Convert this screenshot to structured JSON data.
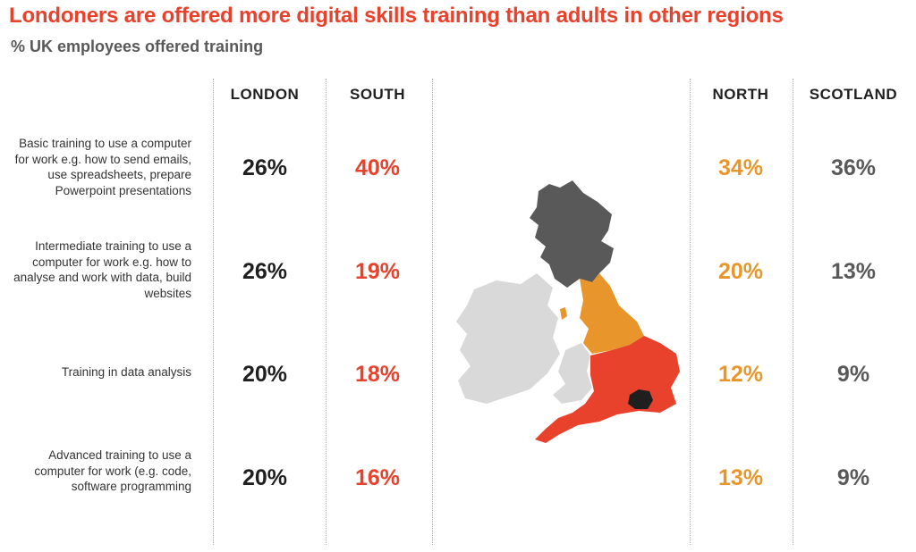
{
  "title": "Londoners are offered more digital skills training than adults in other regions",
  "subtitle": "% UK employees offered training",
  "colors": {
    "title": "#e8412c",
    "london": "#1f1f1f",
    "south": "#e8412c",
    "north": "#e8962c",
    "scotland": "#595959",
    "ireland": "#d9d9d9"
  },
  "map_icon": "uk-regions-map",
  "chart_data": {
    "type": "table",
    "title": "Londoners are offered more digital skills training than adults in other regions",
    "subtitle": "% UK employees offered training",
    "columns": [
      "LONDON",
      "SOUTH",
      "NORTH",
      "SCOTLAND"
    ],
    "rows": [
      {
        "label": "Basic training to use a computer for work e.g. how to send emails, use spreadsheets, prepare Powerpoint presentations",
        "values": [
          "26%",
          "40%",
          "34%",
          "36%"
        ]
      },
      {
        "label": "Intermediate training to use a computer for work e.g. how to analyse and work with data, build websites",
        "values": [
          "26%",
          "19%",
          "20%",
          "13%"
        ]
      },
      {
        "label": "Training in data analysis",
        "values": [
          "20%",
          "18%",
          "12%",
          "9%"
        ]
      },
      {
        "label": "Advanced training to use a computer for work (e.g. code, software programming",
        "values": [
          "20%",
          "16%",
          "13%",
          "9%"
        ]
      }
    ]
  }
}
